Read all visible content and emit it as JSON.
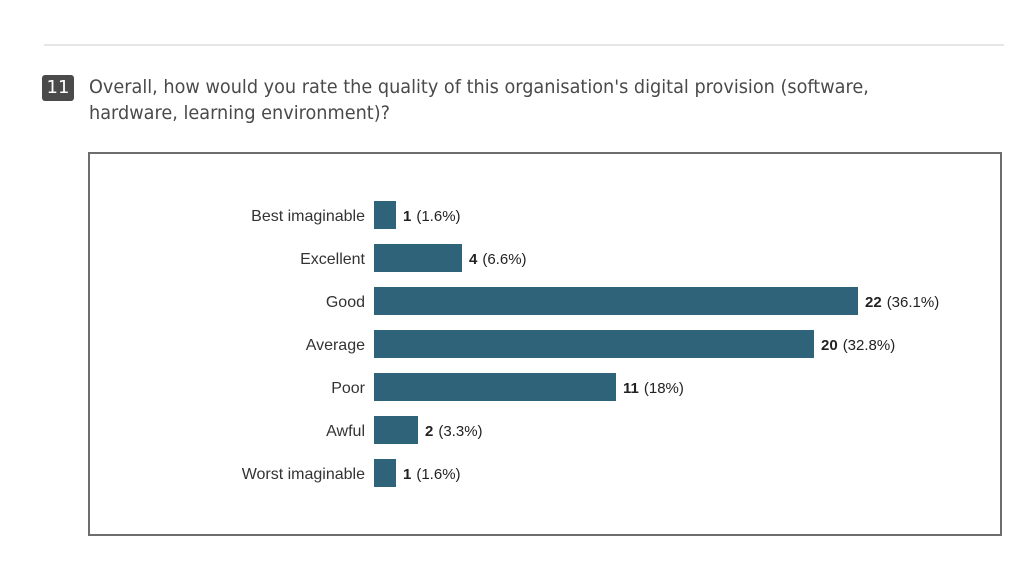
{
  "question": {
    "number": "11",
    "text": "Overall, how would you rate the quality of this organisation's digital provision (software, hardware, learning environment)?"
  },
  "chart_data": {
    "type": "bar",
    "orientation": "horizontal",
    "bar_color": "#2f6379",
    "categories": [
      "Best imaginable",
      "Excellent",
      "Good",
      "Average",
      "Poor",
      "Awful",
      "Worst imaginable"
    ],
    "values": [
      1,
      4,
      22,
      20,
      11,
      2,
      1
    ],
    "percent_labels": [
      "(1.6%)",
      "(6.6%)",
      "(36.1%)",
      "(32.8%)",
      "(18%)",
      "(3.3%)",
      "(1.6%)"
    ]
  }
}
